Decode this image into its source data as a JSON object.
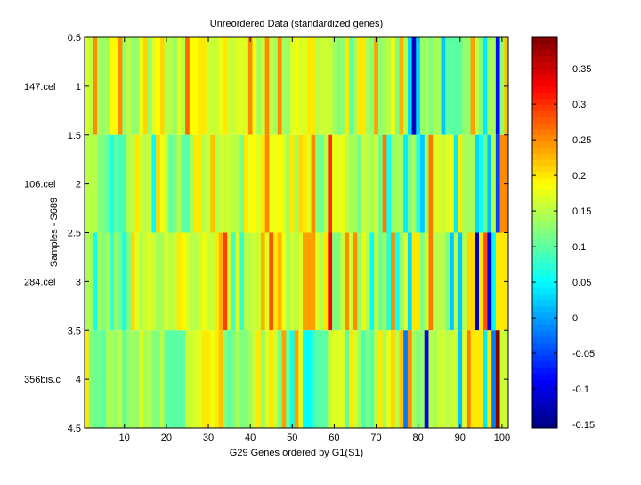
{
  "chart_data": {
    "type": "heatmap",
    "title": "Unreordered Data (standardized genes)",
    "xlabel": "G29 Genes ordered by G1(S1)",
    "ylabel": "Samples - S689",
    "row_labels": [
      "147.cel",
      "106.cel",
      "284.cel",
      "356bis.c"
    ],
    "xlim": [
      0.5,
      101.5
    ],
    "ylim": [
      0.5,
      4.5
    ],
    "xticks": [
      10,
      20,
      30,
      40,
      50,
      60,
      70,
      80,
      90,
      100
    ],
    "yticks": [
      0.5,
      1,
      1.5,
      2,
      2.5,
      3,
      3.5,
      4,
      4.5
    ],
    "colormap": "jet",
    "clim": [
      -0.155,
      0.394
    ],
    "colorbar_ticks": [
      -0.15,
      -0.1,
      -0.05,
      0,
      0.05,
      0.1,
      0.15,
      0.2,
      0.25,
      0.3,
      0.35
    ],
    "values": [
      [
        0.17,
        0.15,
        0.25,
        0.14,
        0.13,
        0.14,
        0.19,
        0.19,
        0.25,
        0.13,
        0.15,
        0.13,
        0.13,
        0.18,
        0.21,
        0.13,
        0.17,
        0.19,
        0.21,
        0.15,
        0.15,
        0.13,
        0.17,
        0.15,
        0.27,
        0.19,
        0.19,
        0.2,
        0.2,
        0.16,
        0.16,
        0.16,
        0.18,
        0.2,
        0.16,
        0.16,
        0.17,
        0.17,
        0.17,
        0.25,
        0.18,
        0.14,
        0.16,
        0.25,
        0.15,
        0.14,
        0.25,
        0.14,
        0.13,
        0.17,
        0.18,
        0.17,
        0.17,
        0.2,
        0.2,
        0.15,
        0.16,
        0.16,
        0.16,
        0.14,
        0.12,
        0.13,
        0.2,
        0.1,
        0.14,
        0.2,
        0.2,
        0.14,
        0.13,
        0.24,
        0.13,
        0.14,
        0.15,
        0.19,
        0.12,
        0.23,
        0.15,
        0.03,
        -0.12,
        0.03,
        0.13,
        0.14,
        0.12,
        0.14,
        0.14,
        0.02,
        0.1,
        0.1,
        0.1,
        0.1,
        0.13,
        0.13,
        0.24,
        0.15,
        0.12,
        0.04,
        0.14,
        0.14,
        -0.08,
        0.13,
        0.22
      ],
      [
        0.15,
        0.15,
        0.15,
        0.12,
        0.12,
        0.1,
        0.07,
        0.1,
        0.09,
        0.09,
        0.15,
        0.15,
        0.2,
        0.16,
        0.15,
        0.16,
        0.05,
        0.21,
        0.18,
        0.16,
        0.1,
        0.12,
        0.15,
        0.1,
        0.1,
        0.14,
        0.2,
        0.2,
        0.15,
        0.16,
        0.22,
        0.15,
        0.16,
        0.16,
        0.16,
        0.15,
        0.15,
        0.12,
        0.2,
        0.18,
        0.19,
        0.17,
        0.2,
        0.25,
        0.18,
        0.18,
        0.19,
        0.17,
        0.14,
        0.2,
        0.14,
        0.21,
        0.2,
        0.17,
        0.25,
        0.12,
        0.11,
        0.15,
        0.3,
        0.18,
        0.17,
        0.18,
        0.15,
        0.14,
        0.14,
        0.11,
        0.16,
        0.15,
        0.14,
        0.16,
        0.11,
        0.26,
        0.06,
        0.13,
        0.14,
        0.14,
        0.04,
        0.12,
        0.14,
        0.07,
        0.02,
        0.13,
        0.26,
        0.17,
        0.17,
        0.16,
        0.17,
        0.18,
        0.04,
        0.2,
        0.14,
        0.14,
        0.14,
        0.03,
        0.06,
        0.11,
        0.02,
        0.15,
        -0.05,
        0.25,
        0.25
      ],
      [
        0.14,
        0.14,
        0.06,
        0.14,
        0.12,
        0.14,
        0.08,
        0.13,
        0.11,
        0.06,
        0.12,
        0.21,
        0.17,
        0.15,
        0.16,
        0.17,
        0.16,
        0.14,
        0.14,
        0.17,
        0.15,
        0.16,
        0.2,
        0.19,
        0.17,
        0.15,
        0.15,
        0.16,
        0.18,
        0.16,
        0.16,
        0.2,
        0.23,
        0.29,
        0.16,
        0.09,
        0.17,
        0.08,
        0.15,
        0.15,
        0.16,
        0.16,
        0.23,
        0.17,
        0.28,
        0.2,
        0.23,
        0.18,
        0.14,
        0.16,
        0.15,
        0.17,
        0.24,
        0.24,
        0.24,
        0.17,
        0.15,
        0.2,
        0.33,
        0.12,
        0.12,
        0.16,
        0.25,
        0.16,
        0.25,
        0.13,
        0.18,
        0.15,
        0.05,
        0.16,
        0.11,
        0.14,
        0.07,
        0.25,
        0.06,
        0.13,
        0.17,
        0.03,
        0.2,
        0.2,
        0.12,
        0.16,
        0.26,
        0.15,
        0.15,
        0.15,
        0.12,
        0.02,
        0.15,
        0.02,
        0.15,
        0.21,
        0.21,
        -0.13,
        0.2,
        0.28,
        -0.1,
        0.05,
        0.2,
        0.2,
        0.2
      ],
      [
        0.2,
        0.12,
        0.11,
        0.11,
        0.1,
        0.14,
        0.14,
        0.13,
        0.15,
        0.1,
        0.13,
        0.14,
        0.13,
        0.17,
        0.14,
        0.15,
        0.12,
        0.12,
        0.15,
        0.1,
        0.1,
        0.1,
        0.1,
        0.1,
        0.16,
        0.16,
        0.17,
        0.17,
        0.2,
        0.2,
        0.18,
        0.2,
        0.22,
        0.12,
        0.1,
        0.12,
        0.14,
        0.12,
        0.12,
        0.14,
        0.16,
        0.2,
        0.13,
        0.17,
        0.2,
        0.16,
        0.12,
        0.24,
        0.11,
        0.06,
        0.24,
        0.17,
        0.05,
        0.05,
        0.08,
        0.1,
        0.1,
        0.1,
        0.16,
        0.17,
        0.17,
        0.17,
        0.1,
        0.2,
        0.16,
        0.14,
        0.09,
        0.12,
        0.1,
        0.15,
        0.2,
        0.14,
        0.18,
        0.21,
        0.15,
        0.22,
        -0.02,
        0.25,
        0.14,
        0.12,
        0.13,
        -0.1,
        0.15,
        0.14,
        0.16,
        0.16,
        0.15,
        0.16,
        0.16,
        0.02,
        0.17,
        0.26,
        0.2,
        0.2,
        0.2,
        0.04,
        0.2,
        -0.02,
        0.39,
        0.16,
        0.16
      ]
    ]
  }
}
